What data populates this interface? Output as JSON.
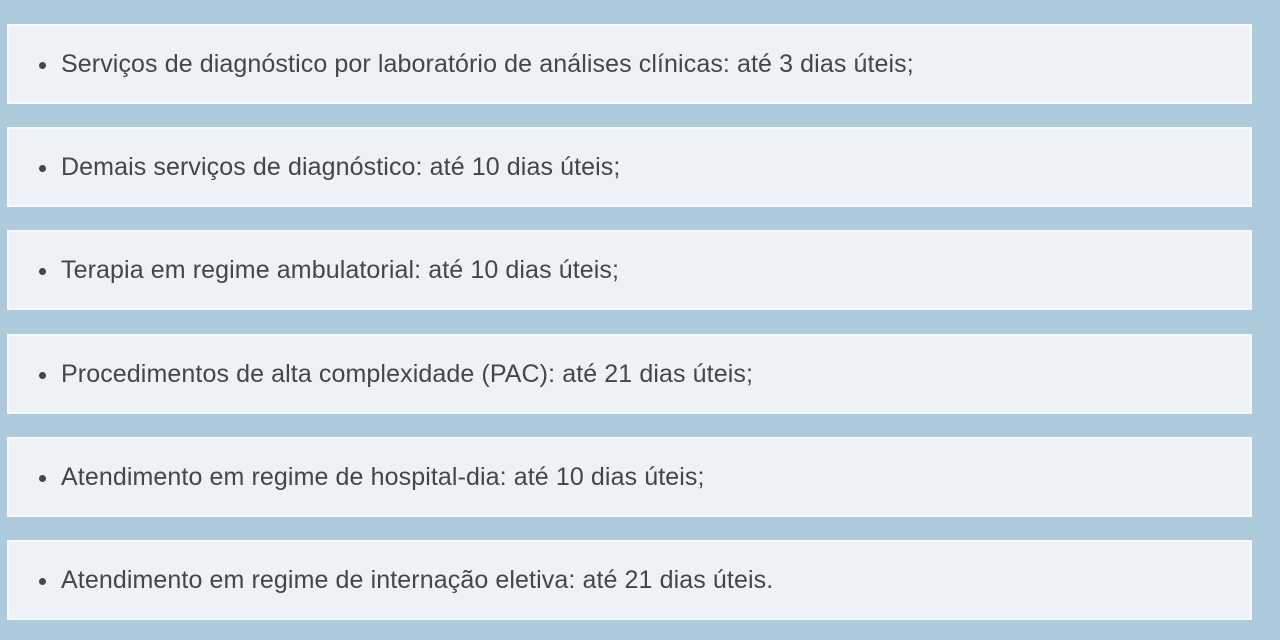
{
  "page": {
    "background_color": "#aecbde",
    "card_background_color": "#eef1f6",
    "card_border_color": "#f7fafc",
    "text_color": "#42474b"
  },
  "list": {
    "items": [
      {
        "label": "Serviços de diagnóstico por laboratório de análises clínicas: até 3 dias úteis;"
      },
      {
        "label": "Demais serviços de diagnóstico: até 10 dias úteis;"
      },
      {
        "label": "Terapia em regime ambulatorial: até 10 dias úteis;"
      },
      {
        "label": "Procedimentos de alta complexidade (PAC): até 21 dias úteis;"
      },
      {
        "label": "Atendimento em regime de hospital-dia: até 10 dias úteis;"
      },
      {
        "label": "Atendimento em regime de internação eletiva: até 21 dias úteis."
      }
    ]
  }
}
